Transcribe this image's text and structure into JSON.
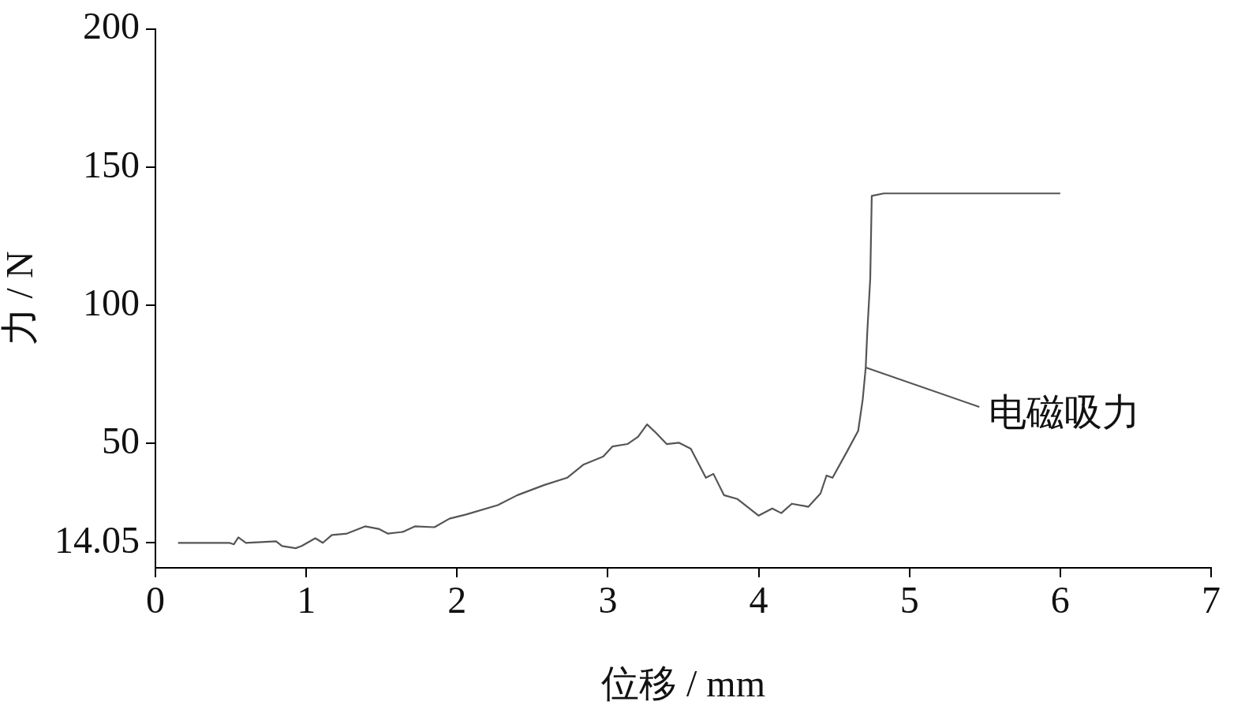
{
  "chart_data": {
    "type": "line",
    "xlabel": "位移 / mm",
    "ylabel": "力 / N",
    "xlim": [
      0,
      7
    ],
    "xticks": [
      0,
      1,
      2,
      3,
      4,
      5,
      6,
      7
    ],
    "ylim": [
      5,
      200
    ],
    "yticks": [
      14.05,
      50,
      100,
      150,
      200
    ],
    "grid": false,
    "legend": false,
    "marker": "none",
    "line_style": "solid",
    "annotations": [
      {
        "text": "电磁吸力",
        "x": 4.71,
        "y": 77.5
      }
    ],
    "series": [
      {
        "color": "#555555",
        "x": [
          0.15,
          0.49,
          0.52,
          0.55,
          0.6,
          0.8,
          0.84,
          0.93,
          0.97,
          1.06,
          1.11,
          1.17,
          1.27,
          1.39,
          1.48,
          1.54,
          1.64,
          1.72,
          1.85,
          1.95,
          2.06,
          2.27,
          2.4,
          2.58,
          2.73,
          2.84,
          2.97,
          3.03,
          3.13,
          3.2,
          3.26,
          3.32,
          3.39,
          3.47,
          3.55,
          3.65,
          3.7,
          3.77,
          3.86,
          4.0,
          4.09,
          4.15,
          4.22,
          4.33,
          4.41,
          4.45,
          4.49,
          4.59,
          4.66,
          4.69,
          4.71,
          4.72,
          4.74,
          4.75,
          4.83,
          6.0
        ],
        "values": [
          14.05,
          14.05,
          13.5,
          16,
          14.05,
          14.6,
          12.9,
          12.1,
          12.9,
          15.7,
          14.05,
          16.9,
          17.4,
          20,
          19.1,
          17.4,
          18,
          20,
          19.7,
          22.8,
          24.3,
          27.7,
          31.3,
          35,
          37.6,
          42.4,
          45.3,
          48.9,
          49.8,
          52.4,
          56.9,
          53.8,
          49.8,
          50.3,
          48.1,
          37.6,
          39,
          31.3,
          29.9,
          23.9,
          26.5,
          24.8,
          28.2,
          27.1,
          31.9,
          38.4,
          37.6,
          47.5,
          54.6,
          65.9,
          77.5,
          90,
          109.8,
          139.6,
          140.5,
          140.5
        ]
      }
    ]
  }
}
